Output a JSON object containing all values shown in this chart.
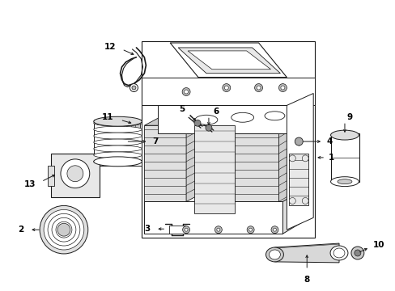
{
  "bg_color": "#ffffff",
  "line_color": "#1a1a1a",
  "lw": 0.7,
  "fig_width": 4.89,
  "fig_height": 3.6,
  "dpi": 100
}
